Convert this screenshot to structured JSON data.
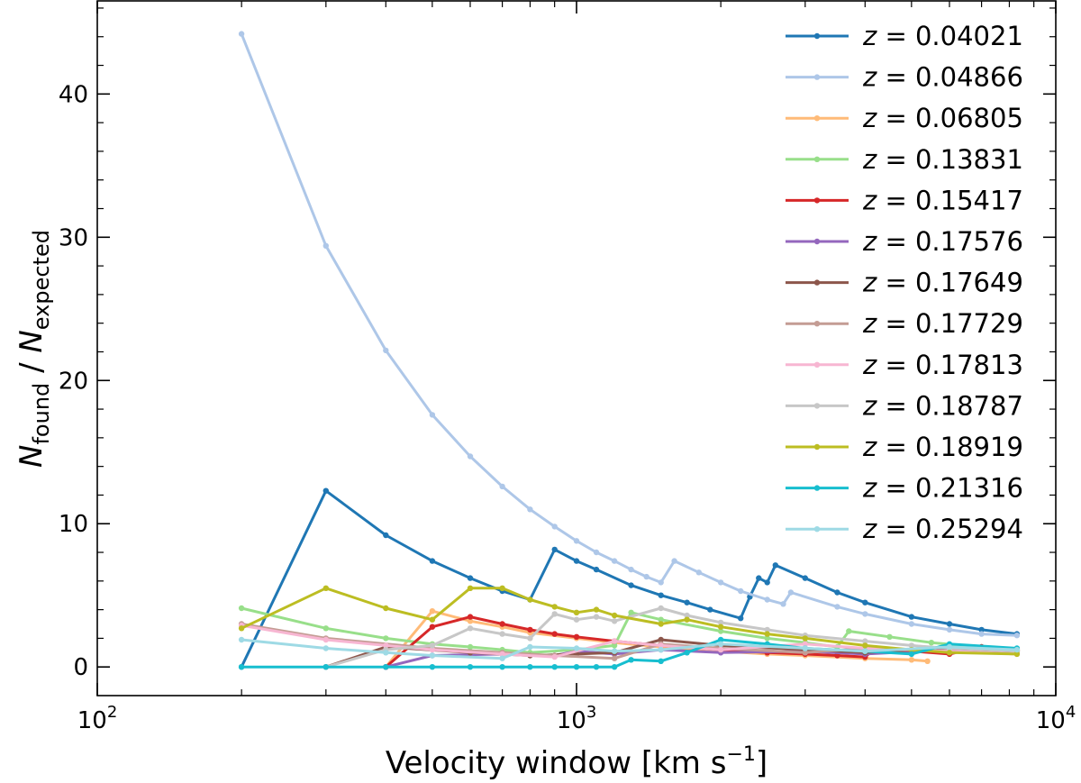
{
  "chart_data": {
    "type": "line",
    "x_scale": "log",
    "xlabel_text": "Velocity window [km s",
    "xlabel_sup": "−1",
    "xlabel_close": "]",
    "ylabel": {
      "n1": "N",
      "sub1": "found",
      "slash": " / ",
      "n2": "N",
      "sub2": "expected"
    },
    "xlim": [
      100,
      10000
    ],
    "ylim": [
      -2,
      46.5
    ],
    "x_ticks": [
      {
        "value": 100,
        "base": "10",
        "exp": "2"
      },
      {
        "value": 1000,
        "base": "10",
        "exp": "3"
      },
      {
        "value": 10000,
        "base": "10",
        "exp": "4"
      }
    ],
    "y_ticks": [
      {
        "value": 0,
        "label": "0"
      },
      {
        "value": 10,
        "label": "10"
      },
      {
        "value": 20,
        "label": "20"
      },
      {
        "value": 30,
        "label": "30"
      },
      {
        "value": 40,
        "label": "40"
      }
    ],
    "legend_position": "upper right",
    "series": [
      {
        "name": "z = 0.04021",
        "z_sym": "z",
        "eq": " = ",
        "z_val": "0.04021",
        "color": "#1f77b4",
        "points": [
          [
            200,
            0
          ],
          [
            300,
            12.3
          ],
          [
            400,
            9.2
          ],
          [
            500,
            7.4
          ],
          [
            600,
            6.2
          ],
          [
            700,
            5.3
          ],
          [
            800,
            4.7
          ],
          [
            900,
            8.2
          ],
          [
            1000,
            7.4
          ],
          [
            1100,
            6.8
          ],
          [
            1300,
            5.7
          ],
          [
            1500,
            5.0
          ],
          [
            1700,
            4.5
          ],
          [
            1900,
            4.0
          ],
          [
            2200,
            3.4
          ],
          [
            2300,
            4.9
          ],
          [
            2400,
            6.2
          ],
          [
            2500,
            5.9
          ],
          [
            2600,
            7.1
          ],
          [
            3000,
            6.2
          ],
          [
            3500,
            5.2
          ],
          [
            4000,
            4.5
          ],
          [
            5000,
            3.5
          ],
          [
            6000,
            3.0
          ],
          [
            7000,
            2.6
          ],
          [
            8300,
            2.3
          ]
        ]
      },
      {
        "name": "z = 0.04866",
        "z_sym": "z",
        "eq": " = ",
        "z_val": "0.04866",
        "color": "#aec7e8",
        "points": [
          [
            200,
            44.2
          ],
          [
            300,
            29.4
          ],
          [
            400,
            22.1
          ],
          [
            500,
            17.6
          ],
          [
            600,
            14.7
          ],
          [
            700,
            12.6
          ],
          [
            800,
            11.0
          ],
          [
            900,
            9.8
          ],
          [
            1000,
            8.8
          ],
          [
            1100,
            8.0
          ],
          [
            1200,
            7.4
          ],
          [
            1300,
            6.8
          ],
          [
            1400,
            6.3
          ],
          [
            1500,
            5.9
          ],
          [
            1600,
            7.4
          ],
          [
            1800,
            6.6
          ],
          [
            2000,
            5.9
          ],
          [
            2200,
            5.3
          ],
          [
            2500,
            4.7
          ],
          [
            2700,
            4.4
          ],
          [
            2800,
            5.2
          ],
          [
            3500,
            4.2
          ],
          [
            4000,
            3.7
          ],
          [
            5000,
            3.0
          ],
          [
            6000,
            2.6
          ],
          [
            7000,
            2.3
          ],
          [
            8300,
            2.2
          ]
        ]
      },
      {
        "name": "z = 0.06805",
        "z_sym": "z",
        "eq": " = ",
        "z_val": "0.06805",
        "color": "#ffbb78",
        "points": [
          [
            400,
            0
          ],
          [
            500,
            3.9
          ],
          [
            600,
            3.2
          ],
          [
            700,
            2.8
          ],
          [
            800,
            2.4
          ],
          [
            1000,
            2.0
          ],
          [
            1200,
            1.7
          ],
          [
            1500,
            1.4
          ],
          [
            2000,
            1.1
          ],
          [
            2500,
            0.9
          ],
          [
            3000,
            0.8
          ],
          [
            4000,
            0.6
          ],
          [
            5000,
            0.5
          ],
          [
            5400,
            0.4
          ]
        ]
      },
      {
        "name": "z = 0.13831",
        "z_sym": "z",
        "eq": " = ",
        "z_val": "0.13831",
        "color": "#98df8a",
        "points": [
          [
            200,
            4.1
          ],
          [
            300,
            2.7
          ],
          [
            400,
            2.0
          ],
          [
            500,
            1.6
          ],
          [
            600,
            1.4
          ],
          [
            700,
            1.2
          ],
          [
            800,
            1.0
          ],
          [
            1000,
            1.2
          ],
          [
            1200,
            1.5
          ],
          [
            1300,
            3.8
          ],
          [
            1500,
            3.3
          ],
          [
            2000,
            2.5
          ],
          [
            2500,
            2.0
          ],
          [
            3000,
            1.7
          ],
          [
            3500,
            1.4
          ],
          [
            3700,
            2.5
          ],
          [
            4500,
            2.1
          ],
          [
            5500,
            1.7
          ],
          [
            7000,
            1.4
          ],
          [
            8300,
            1.2
          ]
        ]
      },
      {
        "name": "z = 0.15417",
        "z_sym": "z",
        "eq": " = ",
        "z_val": "0.15417",
        "color": "#d62728",
        "points": [
          [
            400,
            0
          ],
          [
            500,
            2.8
          ],
          [
            600,
            3.5
          ],
          [
            700,
            3.0
          ],
          [
            800,
            2.6
          ],
          [
            900,
            2.3
          ],
          [
            1000,
            2.1
          ],
          [
            1200,
            1.8
          ],
          [
            1500,
            1.5
          ],
          [
            2000,
            1.2
          ],
          [
            2500,
            1.0
          ],
          [
            3000,
            0.9
          ],
          [
            3500,
            0.8
          ],
          [
            4000,
            0.7
          ],
          [
            4200,
            1.3
          ],
          [
            5000,
            1.1
          ],
          [
            6000,
            0.9
          ],
          [
            7000,
            1.4
          ],
          [
            8300,
            1.2
          ]
        ]
      },
      {
        "name": "z = 0.17576",
        "z_sym": "z",
        "eq": " = ",
        "z_val": "0.17576",
        "color": "#9467bd",
        "points": [
          [
            400,
            0
          ],
          [
            500,
            0.8
          ],
          [
            700,
            0.9
          ],
          [
            900,
            0.8
          ],
          [
            1000,
            1.1
          ],
          [
            1200,
            0.9
          ],
          [
            1500,
            1.2
          ],
          [
            2000,
            1.0
          ],
          [
            3000,
            1.1
          ],
          [
            4000,
            0.9
          ],
          [
            6000,
            1.2
          ],
          [
            8300,
            1.1
          ]
        ]
      },
      {
        "name": "z = 0.17649",
        "z_sym": "z",
        "eq": " = ",
        "z_val": "0.17649",
        "color": "#8c564b",
        "points": [
          [
            300,
            0
          ],
          [
            400,
            1.4
          ],
          [
            600,
            1.0
          ],
          [
            800,
            0.8
          ],
          [
            1000,
            0.9
          ],
          [
            1200,
            1.0
          ],
          [
            1500,
            1.9
          ],
          [
            2000,
            1.5
          ],
          [
            3000,
            1.2
          ],
          [
            4000,
            1.0
          ],
          [
            6000,
            1.3
          ],
          [
            8300,
            1.1
          ]
        ]
      },
      {
        "name": "z = 0.17729",
        "z_sym": "z",
        "eq": " = ",
        "z_val": "0.17729",
        "color": "#c49c94",
        "points": [
          [
            200,
            3.0
          ],
          [
            300,
            2.0
          ],
          [
            500,
            1.3
          ],
          [
            700,
            1.0
          ],
          [
            900,
            0.8
          ],
          [
            1200,
            0.6
          ],
          [
            1500,
            1.6
          ],
          [
            2000,
            1.3
          ],
          [
            3000,
            1.0
          ],
          [
            4000,
            1.3
          ],
          [
            6000,
            1.1
          ],
          [
            8300,
            0.9
          ]
        ]
      },
      {
        "name": "z = 0.17813",
        "z_sym": "z",
        "eq": " = ",
        "z_val": "0.17813",
        "color": "#f7b6d2",
        "points": [
          [
            200,
            2.9
          ],
          [
            300,
            1.9
          ],
          [
            400,
            1.5
          ],
          [
            500,
            1.2
          ],
          [
            700,
            0.9
          ],
          [
            900,
            0.7
          ],
          [
            1200,
            1.8
          ],
          [
            1500,
            1.5
          ],
          [
            2000,
            1.2
          ],
          [
            3000,
            1.6
          ],
          [
            4000,
            1.3
          ],
          [
            6000,
            1.1
          ],
          [
            8300,
            0.9
          ]
        ]
      },
      {
        "name": "z = 0.18787",
        "z_sym": "z",
        "eq": " = ",
        "z_val": "0.18787",
        "color": "#c7c7c7",
        "points": [
          [
            300,
            0
          ],
          [
            400,
            1.2
          ],
          [
            500,
            1.5
          ],
          [
            600,
            2.7
          ],
          [
            700,
            2.3
          ],
          [
            800,
            2.0
          ],
          [
            900,
            3.7
          ],
          [
            1000,
            3.3
          ],
          [
            1100,
            3.5
          ],
          [
            1200,
            3.2
          ],
          [
            1500,
            4.1
          ],
          [
            1700,
            3.6
          ],
          [
            2000,
            3.1
          ],
          [
            2500,
            2.6
          ],
          [
            3000,
            2.2
          ],
          [
            4000,
            1.8
          ],
          [
            5000,
            1.5
          ],
          [
            6000,
            1.3
          ],
          [
            8300,
            1.1
          ]
        ]
      },
      {
        "name": "z = 0.18919",
        "z_sym": "z",
        "eq": " = ",
        "z_val": "0.18919",
        "color": "#bcbd22",
        "points": [
          [
            200,
            2.7
          ],
          [
            300,
            5.5
          ],
          [
            400,
            4.1
          ],
          [
            500,
            3.3
          ],
          [
            600,
            5.5
          ],
          [
            700,
            5.5
          ],
          [
            800,
            4.7
          ],
          [
            900,
            4.2
          ],
          [
            1000,
            3.8
          ],
          [
            1100,
            4.0
          ],
          [
            1200,
            3.6
          ],
          [
            1500,
            3.0
          ],
          [
            1700,
            3.3
          ],
          [
            2000,
            2.8
          ],
          [
            2500,
            2.3
          ],
          [
            3000,
            2.0
          ],
          [
            4000,
            1.5
          ],
          [
            5000,
            1.2
          ],
          [
            6000,
            1.0
          ],
          [
            8300,
            0.9
          ]
        ]
      },
      {
        "name": "z = 0.21316",
        "z_sym": "z",
        "eq": " = ",
        "z_val": "0.21316",
        "color": "#17becf",
        "points": [
          [
            200,
            0
          ],
          [
            300,
            0
          ],
          [
            400,
            0
          ],
          [
            500,
            0
          ],
          [
            600,
            0
          ],
          [
            700,
            0
          ],
          [
            800,
            0
          ],
          [
            900,
            0
          ],
          [
            1000,
            0
          ],
          [
            1100,
            0
          ],
          [
            1200,
            0
          ],
          [
            1300,
            0.5
          ],
          [
            1500,
            0.4
          ],
          [
            1700,
            1.0
          ],
          [
            2000,
            1.9
          ],
          [
            2500,
            1.6
          ],
          [
            3000,
            1.3
          ],
          [
            4000,
            1.1
          ],
          [
            5000,
            0.9
          ],
          [
            6000,
            1.6
          ],
          [
            8300,
            1.3
          ]
        ]
      },
      {
        "name": "z = 0.25294",
        "z_sym": "z",
        "eq": " = ",
        "z_val": "0.25294",
        "color": "#9edae5",
        "points": [
          [
            200,
            1.9
          ],
          [
            300,
            1.3
          ],
          [
            400,
            1.0
          ],
          [
            500,
            0.8
          ],
          [
            700,
            0.6
          ],
          [
            800,
            1.4
          ],
          [
            1000,
            1.3
          ],
          [
            1200,
            1.1
          ],
          [
            1500,
            1.2
          ],
          [
            2000,
            1.6
          ],
          [
            3000,
            1.3
          ],
          [
            4000,
            1.1
          ],
          [
            6000,
            1.4
          ],
          [
            8300,
            1.2
          ]
        ]
      }
    ]
  }
}
